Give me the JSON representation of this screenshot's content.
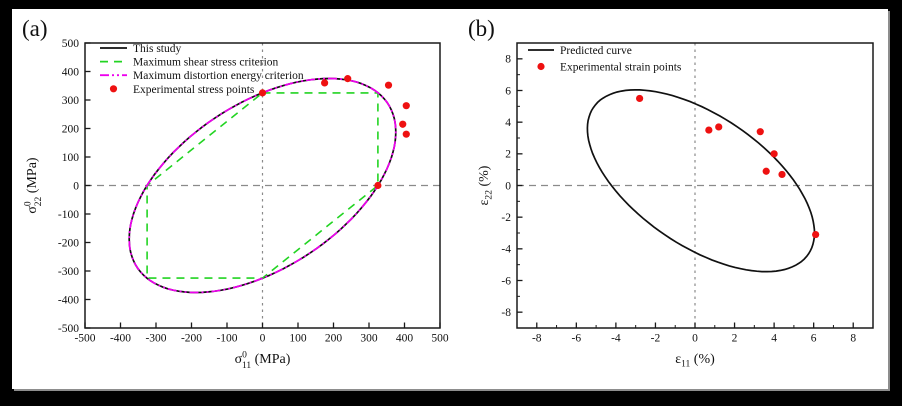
{
  "panels": [
    {
      "tag": "(a)",
      "xlabel": {
        "pre": "σ",
        "sup": "0",
        "sub": "11",
        "post": " (MPa)"
      },
      "ylabel": {
        "pre": "σ",
        "sup": "0",
        "sub": "22",
        "post": " (MPa)"
      },
      "legend": [
        {
          "label": "This study",
          "sample": "line",
          "color": "#111111",
          "dash": "solid"
        },
        {
          "label": "Maximum shear stress criterion",
          "sample": "line",
          "color": "#22d422",
          "dash": "dashed"
        },
        {
          "label": "Maximum distortion energy criterion",
          "sample": "line",
          "color": "#ee00ee",
          "dash": "dashdotdot"
        },
        {
          "label": "Experimental stress points",
          "sample": "marker",
          "color": "#ee1111"
        }
      ]
    },
    {
      "tag": "(b)",
      "xlabel": {
        "pre": "ε",
        "sup": "",
        "sub": "11",
        "post": " (%)"
      },
      "ylabel": {
        "pre": "ε",
        "sup": "",
        "sub": "22",
        "post": " (%)"
      },
      "legend": [
        {
          "label": "Predicted curve",
          "sample": "line",
          "color": "#111111",
          "dash": "solid"
        },
        {
          "label": "Experimental strain points",
          "sample": "marker",
          "color": "#ee1111"
        }
      ]
    }
  ],
  "colors": {
    "background": "#000000",
    "panel": "#ffffff",
    "frame": "#1a1a1a",
    "zero_line": "#8a8a8a",
    "this_study": "#111111",
    "shear_criterion": "#22d422",
    "distortion_criterion": "#ee00ee",
    "experimental": "#ee1111"
  },
  "chart_data": [
    {
      "type": "line",
      "xlabel": "sigma11_0 (MPa)",
      "ylabel": "sigma22_0 (MPa)",
      "xlim": [
        -500,
        500
      ],
      "ylim": [
        -500,
        500
      ],
      "xticks": [
        -500,
        -400,
        -300,
        -200,
        -100,
        0,
        100,
        200,
        300,
        400,
        500
      ],
      "yticks": [
        500,
        400,
        300,
        200,
        100,
        0,
        -100,
        -200,
        -300,
        -400,
        -500
      ],
      "minor_tick_step": null,
      "grid": false,
      "zero_lines": true,
      "legend_position": "top-left",
      "series": [
        {
          "name": "This study",
          "type": "ellipse",
          "style": "solid",
          "color": "#111111",
          "center": [
            0,
            0
          ],
          "semi_major": 460,
          "semi_minor": 265.5,
          "angle_deg": 45,
          "note": "yield locus through (0,325),(325,0),(-325,0),(0,-325), peak ~(187,375)"
        },
        {
          "name": "Maximum shear stress criterion",
          "type": "polygon",
          "style": "dashed",
          "color": "#22d422",
          "points": [
            [
              0,
              325
            ],
            [
              325,
              325
            ],
            [
              325,
              0
            ],
            [
              0,
              -325
            ],
            [
              -325,
              -325
            ],
            [
              -325,
              0
            ]
          ]
        },
        {
          "name": "Maximum distortion energy criterion",
          "type": "ellipse",
          "style": "dashdotdot",
          "color": "#ee00ee",
          "center": [
            0,
            0
          ],
          "semi_major": 460,
          "semi_minor": 265.5,
          "angle_deg": 45
        },
        {
          "name": "Experimental stress points",
          "type": "scatter",
          "color": "#ee1111",
          "points": [
            [
              0,
              325
            ],
            [
              175,
              360
            ],
            [
              240,
              375
            ],
            [
              355,
              352
            ],
            [
              405,
              280
            ],
            [
              395,
              215
            ],
            [
              405,
              180
            ],
            [
              325,
              0
            ]
          ]
        }
      ]
    },
    {
      "type": "line",
      "xlabel": "epsilon11 (%)",
      "ylabel": "epsilon22 (%)",
      "xlim": [
        -9,
        9
      ],
      "ylim": [
        -9,
        9
      ],
      "xticks": [
        -8,
        -6,
        -4,
        -2,
        0,
        2,
        4,
        6,
        8
      ],
      "yticks": [
        8,
        6,
        4,
        2,
        0,
        -2,
        -4,
        -6,
        -8
      ],
      "minor_tick_step": 1,
      "grid": false,
      "zero_lines": true,
      "legend_position": "top-left",
      "series": [
        {
          "name": "Predicted curve",
          "type": "ellipse",
          "style": "solid",
          "color": "#111111",
          "center": [
            0.3,
            0.3
          ],
          "semi_major": 7.2,
          "semi_minor": 3.75,
          "angle_deg": -45,
          "note": "strain locus, top ~(-2.9,6.1), right ~(6.1,-2.6), bottom ~(2.9,-5.5)"
        },
        {
          "name": "Experimental strain points",
          "type": "scatter",
          "color": "#ee1111",
          "points": [
            [
              -2.8,
              5.5
            ],
            [
              0.7,
              3.5
            ],
            [
              1.2,
              3.7
            ],
            [
              3.3,
              3.4
            ],
            [
              4.0,
              2.0
            ],
            [
              3.6,
              0.9
            ],
            [
              4.4,
              0.7
            ],
            [
              6.1,
              -3.1
            ]
          ]
        }
      ]
    }
  ]
}
